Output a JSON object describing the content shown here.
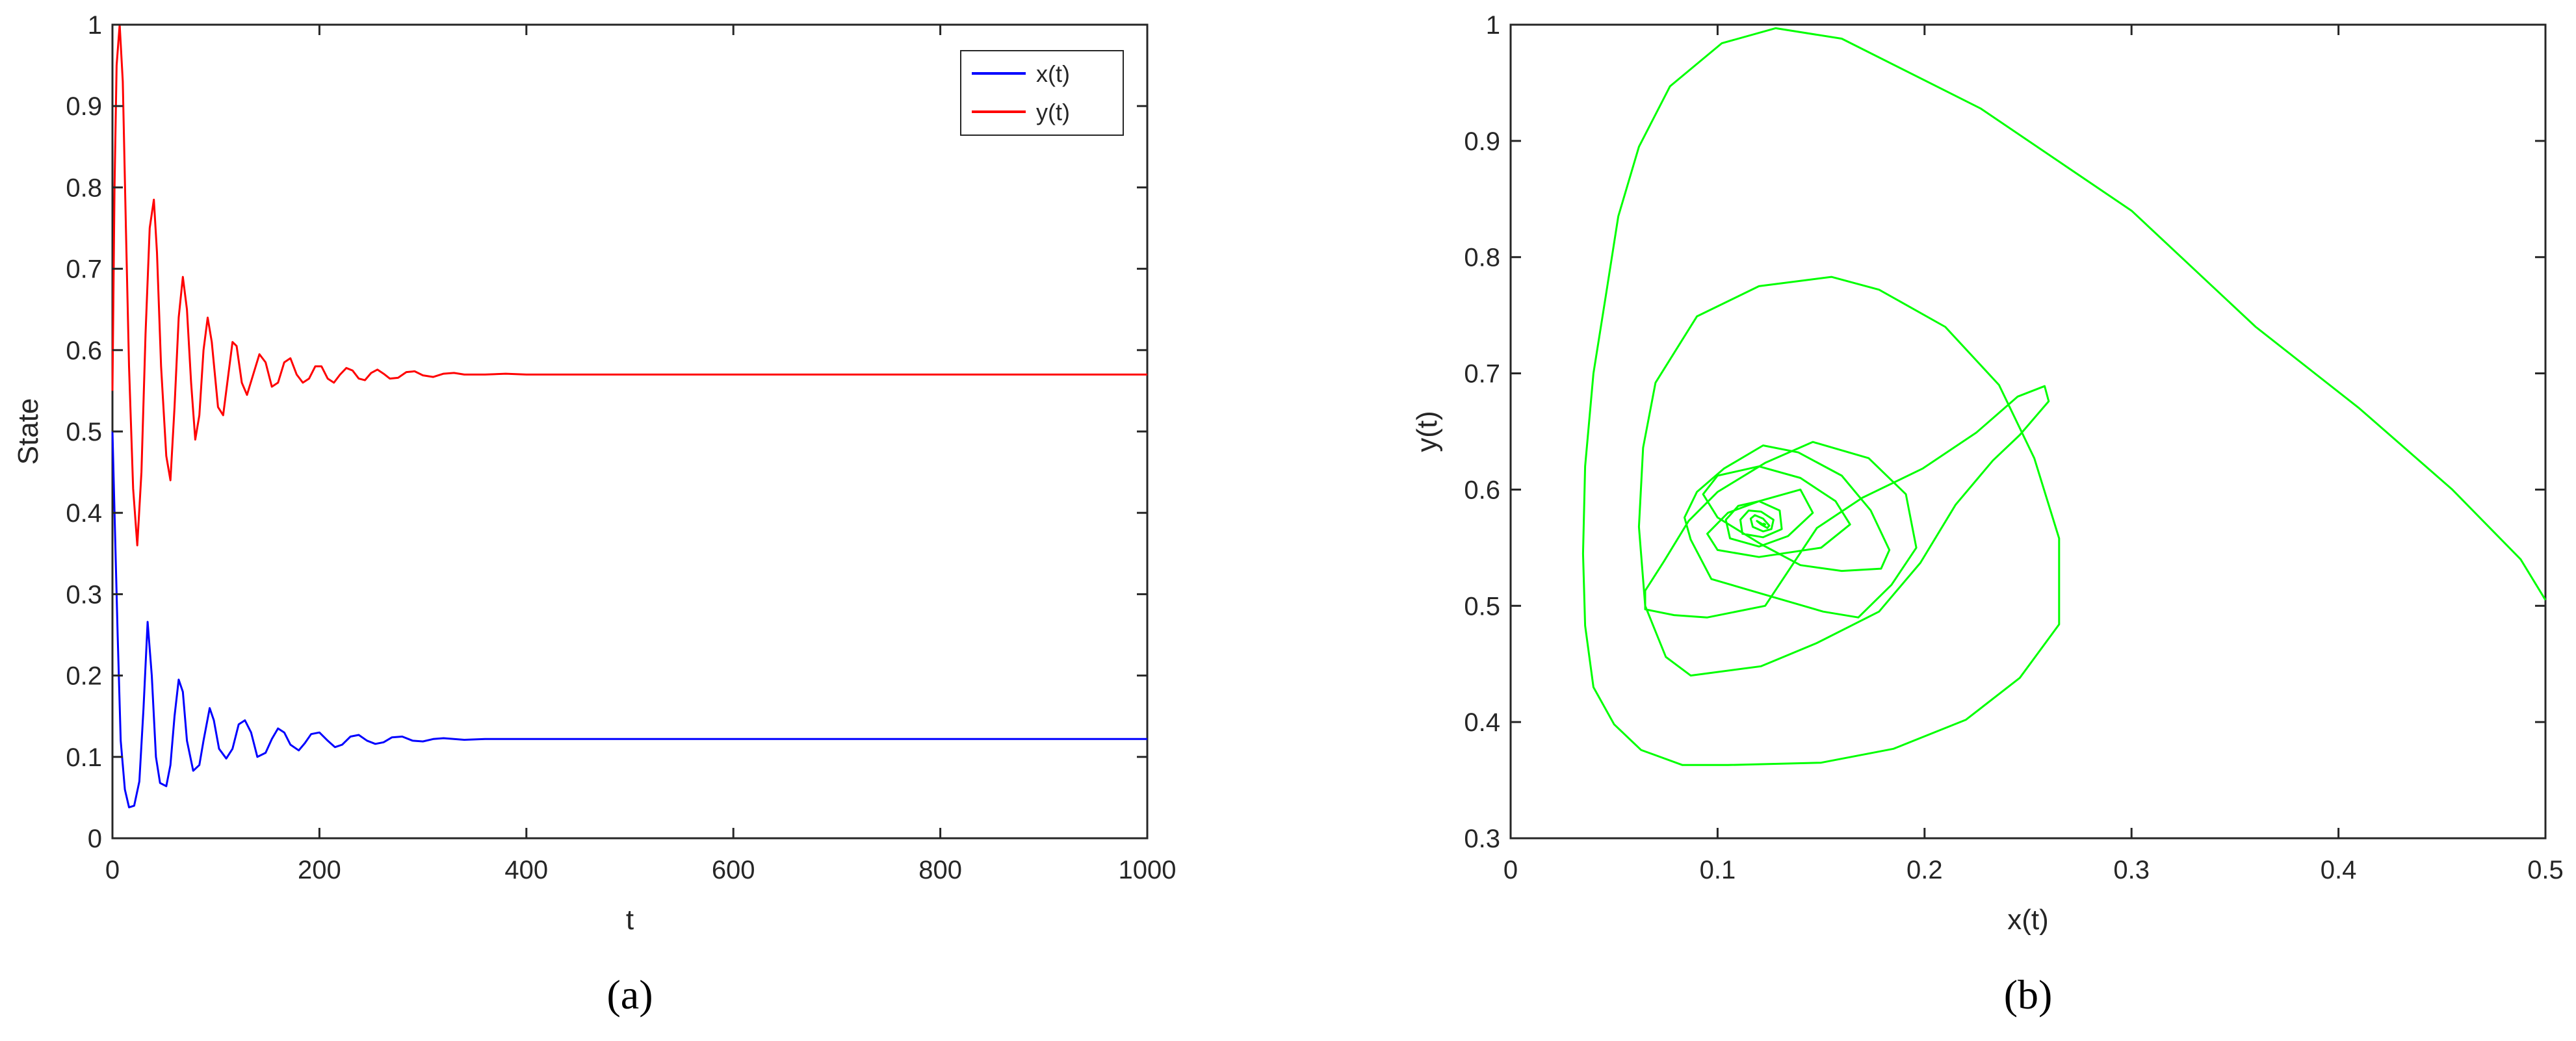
{
  "chart_data": [
    {
      "type": "line",
      "panel_label": "(a)",
      "xlabel": "t",
      "ylabel": "State",
      "xlim": [
        0,
        1000
      ],
      "ylim": [
        0,
        1
      ],
      "xticks": [
        0,
        200,
        400,
        600,
        800,
        1000
      ],
      "xtick_labels": [
        "0",
        "200",
        "400",
        "600",
        "800",
        "1000"
      ],
      "yticks": [
        0,
        0.1,
        0.2,
        0.3,
        0.4,
        0.5,
        0.6,
        0.7,
        0.8,
        0.9,
        1
      ],
      "ytick_labels": [
        "0",
        "0.1",
        "0.2",
        "0.3",
        "0.4",
        "0.5",
        "0.6",
        "0.7",
        "0.8",
        "0.9",
        "1"
      ],
      "grid": false,
      "legend_position": "top-right",
      "series": [
        {
          "name": "x(t)",
          "color": "#0000ff",
          "x": [
            0,
            2,
            5,
            8,
            12,
            16,
            21,
            26,
            30,
            34,
            38,
            42,
            46,
            52,
            56,
            60,
            64,
            68,
            72,
            78,
            84,
            88,
            94,
            98,
            103,
            110,
            116,
            122,
            128,
            134,
            140,
            148,
            154,
            160,
            166,
            172,
            180,
            186,
            192,
            200,
            208,
            215,
            222,
            230,
            238,
            246,
            254,
            262,
            270,
            280,
            290,
            300,
            310,
            320,
            340,
            360,
            380,
            400,
            450,
            500,
            1000
          ],
          "y": [
            0.5,
            0.4,
            0.25,
            0.12,
            0.06,
            0.038,
            0.04,
            0.07,
            0.16,
            0.266,
            0.2,
            0.1,
            0.068,
            0.064,
            0.09,
            0.15,
            0.195,
            0.18,
            0.12,
            0.083,
            0.09,
            0.12,
            0.16,
            0.145,
            0.11,
            0.098,
            0.11,
            0.14,
            0.145,
            0.13,
            0.1,
            0.105,
            0.122,
            0.135,
            0.13,
            0.115,
            0.108,
            0.117,
            0.128,
            0.13,
            0.12,
            0.112,
            0.115,
            0.125,
            0.127,
            0.12,
            0.116,
            0.118,
            0.124,
            0.125,
            0.12,
            0.119,
            0.122,
            0.123,
            0.121,
            0.122,
            0.122,
            0.122,
            0.122,
            0.122,
            0.122
          ]
        },
        {
          "name": "y(t)",
          "color": "#ff0000",
          "x": [
            0,
            2,
            4,
            7,
            10,
            13,
            16,
            20,
            24,
            28,
            32,
            36,
            40,
            43,
            47,
            52,
            56,
            60,
            64,
            68,
            72,
            76,
            80,
            84,
            88,
            92,
            96,
            102,
            107,
            112,
            116,
            120,
            125,
            130,
            136,
            142,
            148,
            154,
            160,
            166,
            172,
            178,
            184,
            190,
            196,
            202,
            208,
            214,
            220,
            226,
            232,
            238,
            244,
            250,
            256,
            262,
            268,
            276,
            284,
            292,
            300,
            310,
            320,
            330,
            340,
            360,
            380,
            400,
            450,
            500,
            1000
          ],
          "y": [
            0.55,
            0.8,
            0.95,
            1.0,
            0.93,
            0.75,
            0.58,
            0.43,
            0.36,
            0.45,
            0.62,
            0.75,
            0.785,
            0.72,
            0.58,
            0.47,
            0.44,
            0.53,
            0.64,
            0.69,
            0.65,
            0.56,
            0.49,
            0.52,
            0.6,
            0.64,
            0.61,
            0.53,
            0.52,
            0.57,
            0.61,
            0.605,
            0.56,
            0.545,
            0.57,
            0.595,
            0.585,
            0.555,
            0.56,
            0.585,
            0.59,
            0.57,
            0.56,
            0.565,
            0.58,
            0.58,
            0.565,
            0.56,
            0.57,
            0.578,
            0.575,
            0.565,
            0.563,
            0.572,
            0.576,
            0.571,
            0.565,
            0.566,
            0.573,
            0.574,
            0.569,
            0.567,
            0.571,
            0.572,
            0.57,
            0.57,
            0.571,
            0.57,
            0.57,
            0.57,
            0.57
          ]
        }
      ]
    },
    {
      "type": "line",
      "panel_label": "(b)",
      "xlabel": "x(t)",
      "ylabel": "y(t)",
      "xlim": [
        0,
        0.5
      ],
      "ylim": [
        0.3,
        1
      ],
      "xticks": [
        0,
        0.1,
        0.2,
        0.3,
        0.4,
        0.5
      ],
      "xtick_labels": [
        "0",
        "0.1",
        "0.2",
        "0.3",
        "0.4",
        "0.5"
      ],
      "yticks": [
        0.3,
        0.4,
        0.5,
        0.6,
        0.7,
        0.8,
        0.9,
        1
      ],
      "ytick_labels": [
        "0.3",
        "0.4",
        "0.5",
        "0.6",
        "0.7",
        "0.8",
        "0.9",
        "1"
      ],
      "grid": false,
      "series": [
        {
          "color": "#00ff00",
          "x": [
            0.5,
            0.488,
            0.455,
            0.41,
            0.36,
            0.3,
            0.227,
            0.16,
            0.128,
            0.102,
            0.077,
            0.062,
            0.052,
            0.046,
            0.04,
            0.036,
            0.035,
            0.036,
            0.04,
            0.05,
            0.063,
            0.083,
            0.105,
            0.15,
            0.185,
            0.22,
            0.246,
            0.265,
            0.265,
            0.253,
            0.236,
            0.21,
            0.178,
            0.155,
            0.12,
            0.09,
            0.07,
            0.064,
            0.062,
            0.065,
            0.075,
            0.087,
            0.121,
            0.148,
            0.178,
            0.198,
            0.215,
            0.233,
            0.246,
            0.26,
            0.258,
            0.245,
            0.225,
            0.199,
            0.17,
            0.148,
            0.123,
            0.095,
            0.079,
            0.065,
            0.065,
            0.074,
            0.086,
            0.1,
            0.123,
            0.146,
            0.173,
            0.191,
            0.196,
            0.184,
            0.168,
            0.151,
            0.124,
            0.097,
            0.087,
            0.084,
            0.09,
            0.103,
            0.122,
            0.139,
            0.16,
            0.174,
            0.183,
            0.179,
            0.16,
            0.14,
            0.121,
            0.1,
            0.093,
            0.1,
            0.12,
            0.14,
            0.157,
            0.164,
            0.15,
            0.12,
            0.1,
            0.095,
            0.105,
            0.12,
            0.14,
            0.146,
            0.134,
            0.12,
            0.106,
            0.104,
            0.11,
            0.12,
            0.13,
            0.131,
            0.122,
            0.112,
            0.111,
            0.115,
            0.121,
            0.127,
            0.126,
            0.122,
            0.117,
            0.116,
            0.118,
            0.122,
            0.125,
            0.124,
            0.121,
            0.119,
            0.12,
            0.122,
            0.123,
            0.122
          ],
          "y": [
            0.505,
            0.54,
            0.6,
            0.67,
            0.74,
            0.84,
            0.928,
            0.988,
            0.997,
            0.984,
            0.947,
            0.895,
            0.835,
            0.767,
            0.7,
            0.62,
            0.545,
            0.483,
            0.43,
            0.398,
            0.376,
            0.363,
            0.363,
            0.365,
            0.377,
            0.402,
            0.438,
            0.484,
            0.558,
            0.627,
            0.69,
            0.74,
            0.772,
            0.783,
            0.775,
            0.749,
            0.692,
            0.636,
            0.568,
            0.5,
            0.456,
            0.44,
            0.448,
            0.468,
            0.495,
            0.537,
            0.587,
            0.625,
            0.647,
            0.676,
            0.689,
            0.68,
            0.649,
            0.618,
            0.593,
            0.567,
            0.5,
            0.49,
            0.492,
            0.497,
            0.513,
            0.538,
            0.573,
            0.598,
            0.623,
            0.641,
            0.627,
            0.596,
            0.55,
            0.518,
            0.49,
            0.495,
            0.509,
            0.523,
            0.557,
            0.576,
            0.598,
            0.618,
            0.638,
            0.632,
            0.612,
            0.582,
            0.548,
            0.532,
            0.53,
            0.535,
            0.553,
            0.576,
            0.596,
            0.612,
            0.62,
            0.61,
            0.59,
            0.57,
            0.55,
            0.542,
            0.548,
            0.562,
            0.58,
            0.59,
            0.6,
            0.58,
            0.56,
            0.551,
            0.558,
            0.574,
            0.586,
            0.59,
            0.582,
            0.566,
            0.559,
            0.562,
            0.574,
            0.582,
            0.581,
            0.574,
            0.566,
            0.564,
            0.568,
            0.575,
            0.578,
            0.575,
            0.569,
            0.567,
            0.57,
            0.573,
            0.572,
            0.57,
            0.57,
            0.571
          ]
        }
      ]
    }
  ]
}
